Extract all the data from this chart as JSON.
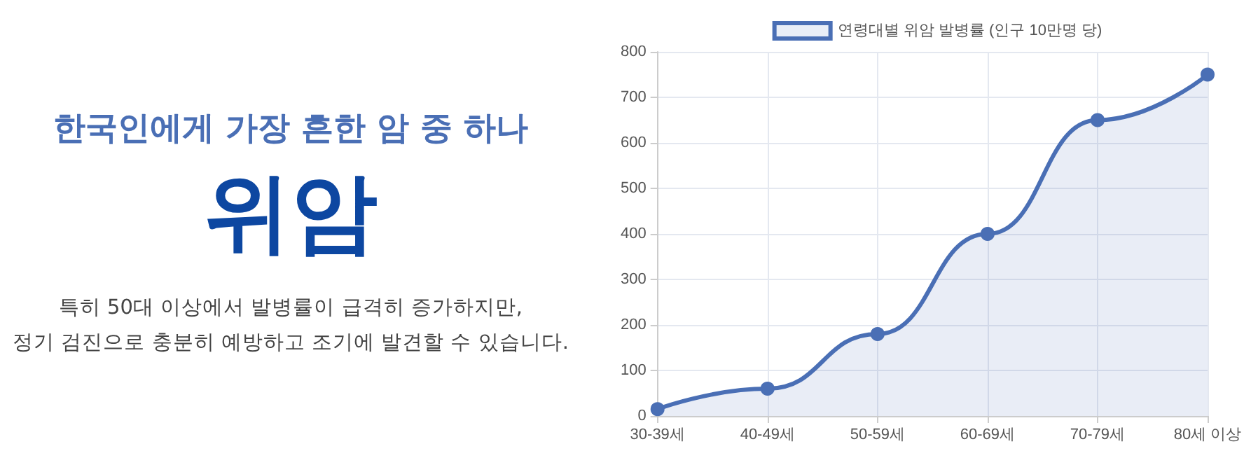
{
  "chart_data": {
    "type": "area",
    "title": "위암",
    "subtitle": "한국인에게 가장 흔한 암 중 하나",
    "annotations": [
      "특히 50대 이상에서 발병률이 급격히 증가하지만,",
      "정기 검진으로 충분히 예방하고 조기에 발견할 수 있습니다."
    ],
    "categories": [
      "30-39세",
      "40-49세",
      "50-59세",
      "60-69세",
      "70-79세",
      "80세 이상"
    ],
    "series": [
      {
        "name": "연령대별 위암 발병률 (인구 10만명 당)",
        "color": "#4a6fb5",
        "values": [
          15,
          60,
          180,
          400,
          650,
          750
        ]
      }
    ],
    "ylim": [
      0,
      800
    ],
    "yticks": [
      0,
      100,
      200,
      300,
      400,
      500,
      600,
      700,
      800
    ],
    "grid": true,
    "legend": "top",
    "marker": "circle",
    "line_style": "solid"
  }
}
